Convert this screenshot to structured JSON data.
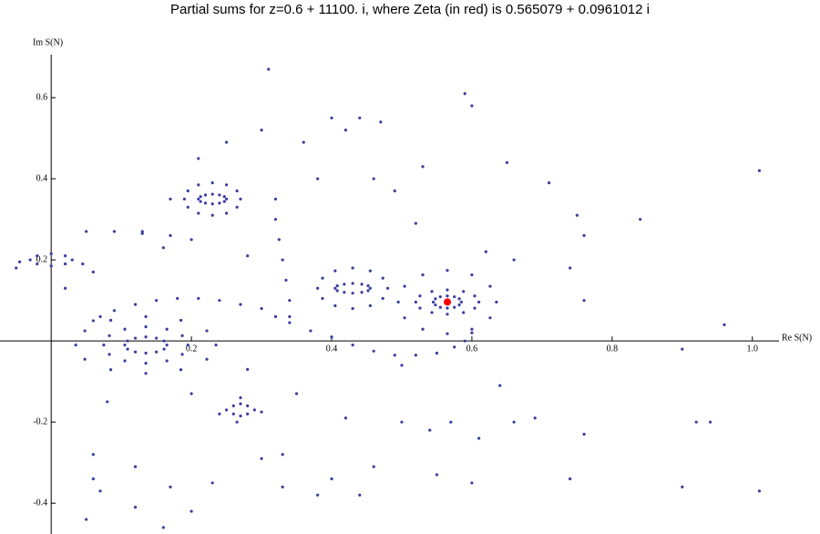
{
  "chart_data": {
    "type": "scatter",
    "title": "Partial sums for z=0.6 + 11100. i, where Zeta (in red) is 0.565079 + 0.0961012 i",
    "x_label": "Re S(N)",
    "y_label": "Im S(N)",
    "xlim": [
      -0.073,
      1.038
    ],
    "ylim": [
      -0.476,
      0.706
    ],
    "xticks": [
      0.2,
      0.4,
      0.6,
      0.8,
      {
        "value": 1,
        "label": "1.0"
      }
    ],
    "yticks": [
      0.6,
      0.4,
      0.2,
      -0.2,
      -0.4
    ],
    "grid": false,
    "color": "#3c3ca0",
    "x": [
      0.585,
      0.582,
      0.575,
      0.565,
      0.555,
      0.548,
      0.545,
      0.548,
      0.555,
      0.565,
      0.575,
      0.582,
      0.61,
      0.604,
      0.588,
      0.565,
      0.543,
      0.526,
      0.52,
      0.526,
      0.543,
      0.565,
      0.588,
      0.604,
      0.635,
      0.626,
      0.6,
      0.565,
      0.53,
      0.504,
      0.495,
      0.504,
      0.53,
      0.565,
      0.6,
      0.626,
      0.165,
      0.161,
      0.15,
      0.135,
      0.12,
      0.109,
      0.105,
      0.109,
      0.12,
      0.135,
      0.15,
      0.161,
      0.195,
      0.187,
      0.165,
      0.135,
      0.105,
      0.083,
      0.075,
      0.083,
      0.105,
      0.135,
      0.165,
      0.187,
      0.235,
      0.222,
      0.185,
      0.135,
      0.085,
      0.048,
      0.035,
      0.048,
      0.085,
      0.135,
      0.185,
      0.222,
      0.455,
      0.452,
      0.443,
      0.43,
      0.418,
      0.408,
      0.405,
      0.408,
      0.418,
      0.43,
      0.443,
      0.452,
      0.48,
      0.473,
      0.455,
      0.43,
      0.405,
      0.387,
      0.38,
      0.387,
      0.405,
      0.43,
      0.455,
      0.473,
      0.25,
      0.247,
      0.24,
      0.23,
      0.22,
      0.213,
      0.21,
      0.213,
      0.22,
      0.23,
      0.24,
      0.247,
      0.27,
      0.265,
      0.25,
      0.23,
      0.21,
      0.195,
      0.19,
      0.195,
      0.21,
      0.23,
      0.25,
      0.265,
      0.03,
      0.02,
      0,
      -0.02,
      -0.03,
      -0.02,
      0,
      0.02,
      0.045,
      -0.045,
      0.06,
      -0.05,
      0.29,
      0.28,
      0.27,
      0.26,
      0.25,
      0.26,
      0.27,
      0.28,
      0.3,
      0.24,
      0.27,
      0.265,
      0.06,
      0.09,
      0.12,
      0.15,
      0.18,
      0.21,
      0.24,
      0.27,
      0.3,
      0.32,
      0.34,
      0.37,
      0.4,
      0.43,
      0.46,
      0.49,
      0.52,
      0.55,
      0.575,
      0.59,
      0.6,
      0.32,
      0.32,
      0.325,
      0.33,
      0.335,
      0.34,
      0.34,
      0.05,
      0.09,
      0.13,
      0.17,
      0.2,
      0.31,
      0.59,
      0.6,
      0.4,
      0.44,
      0.47,
      0.42,
      0.36,
      0.53,
      0.65,
      0.71,
      1.01,
      0.84,
      0.75,
      0.76,
      0.74,
      0.76,
      0.96,
      0.3,
      0.25,
      0.21,
      0.49,
      0.46,
      0.38,
      0.17,
      0.13,
      0.16,
      0.28,
      0.52,
      0.62,
      0.66,
      0.02,
      0.07,
      0.08,
      0.06,
      0.06,
      0.07,
      0.05,
      0.12,
      0.12,
      0.17,
      0.2,
      0.23,
      0.33,
      0.38,
      0.4,
      0.44,
      0.46,
      0.55,
      0.61,
      0.54,
      0.57,
      0.66,
      0.69,
      0.74,
      0.76,
      0.9,
      0.92,
      0.94,
      1.01,
      0.3,
      0.33,
      0.42,
      0.5,
      0.35,
      0.2,
      0.28,
      0.9,
      0.64,
      0.5,
      0.6,
      0.16
    ],
    "values": [
      0.096,
      0.104,
      0.109,
      0.111,
      0.109,
      0.104,
      0.096,
      0.089,
      0.083,
      0.081,
      0.083,
      0.089,
      0.096,
      0.111,
      0.122,
      0.126,
      0.122,
      0.111,
      0.096,
      0.081,
      0.07,
      0.066,
      0.07,
      0.081,
      0.096,
      0.135,
      0.163,
      0.174,
      0.163,
      0.135,
      0.096,
      0.057,
      0.029,
      0.018,
      0.029,
      0.057,
      -0.01,
      0,
      0.007,
      0.01,
      0.007,
      0,
      -0.01,
      -0.02,
      -0.027,
      -0.03,
      -0.027,
      -0.02,
      -0.01,
      0.013,
      0.029,
      0.035,
      0.029,
      0.013,
      -0.01,
      -0.033,
      -0.049,
      -0.055,
      -0.049,
      -0.033,
      -0.01,
      0.025,
      0.051,
      0.06,
      0.051,
      0.025,
      -0.01,
      -0.045,
      -0.071,
      -0.08,
      -0.071,
      -0.045,
      0.13,
      0.136,
      0.14,
      0.142,
      0.14,
      0.136,
      0.13,
      0.124,
      0.12,
      0.118,
      0.12,
      0.124,
      0.13,
      0.155,
      0.173,
      0.18,
      0.173,
      0.155,
      0.13,
      0.105,
      0.087,
      0.08,
      0.087,
      0.105,
      0.35,
      0.356,
      0.36,
      0.362,
      0.36,
      0.356,
      0.35,
      0.344,
      0.34,
      0.338,
      0.34,
      0.344,
      0.35,
      0.37,
      0.385,
      0.39,
      0.385,
      0.37,
      0.35,
      0.33,
      0.315,
      0.31,
      0.315,
      0.33,
      0.2,
      0.21,
      0.215,
      0.21,
      0.2,
      0.19,
      0.185,
      0.19,
      0.19,
      0.195,
      0.17,
      0.18,
      -0.17,
      -0.16,
      -0.155,
      -0.16,
      -0.17,
      -0.18,
      -0.185,
      -0.18,
      -0.175,
      -0.18,
      -0.14,
      -0.2,
      0.05,
      0.075,
      0.09,
      0.1,
      0.105,
      0.105,
      0.1,
      0.09,
      0.08,
      0.06,
      0.045,
      0.025,
      0.01,
      -0.01,
      -0.025,
      -0.035,
      -0.035,
      -0.03,
      -0.015,
      0,
      0.02,
      0.35,
      0.3,
      0.25,
      0.2,
      0.15,
      0.1,
      0.06,
      0.27,
      0.27,
      0.265,
      0.26,
      0.25,
      0.67,
      0.61,
      0.58,
      0.55,
      0.55,
      0.54,
      0.52,
      0.49,
      0.43,
      0.44,
      0.39,
      0.42,
      0.3,
      0.31,
      0.26,
      0.18,
      0.1,
      0.04,
      0.52,
      0.49,
      0.45,
      0.37,
      0.4,
      0.4,
      0.35,
      0.27,
      0.23,
      0.21,
      0.29,
      0.22,
      0.2,
      0.13,
      0.06,
      -0.15,
      -0.28,
      -0.34,
      -0.37,
      -0.44,
      -0.31,
      -0.41,
      -0.36,
      -0.42,
      -0.35,
      -0.36,
      -0.38,
      -0.34,
      -0.38,
      -0.31,
      -0.33,
      -0.24,
      -0.22,
      -0.2,
      -0.2,
      -0.19,
      -0.34,
      -0.23,
      -0.36,
      -0.2,
      -0.2,
      -0.37,
      -0.29,
      -0.28,
      -0.19,
      -0.2,
      -0.13,
      -0.13,
      -0.07,
      -0.02,
      -0.11,
      -0.06,
      -0.35,
      -0.46
    ],
    "highlight": {
      "x": 0.565079,
      "y": 0.0961012,
      "color": "#ff0000"
    }
  }
}
